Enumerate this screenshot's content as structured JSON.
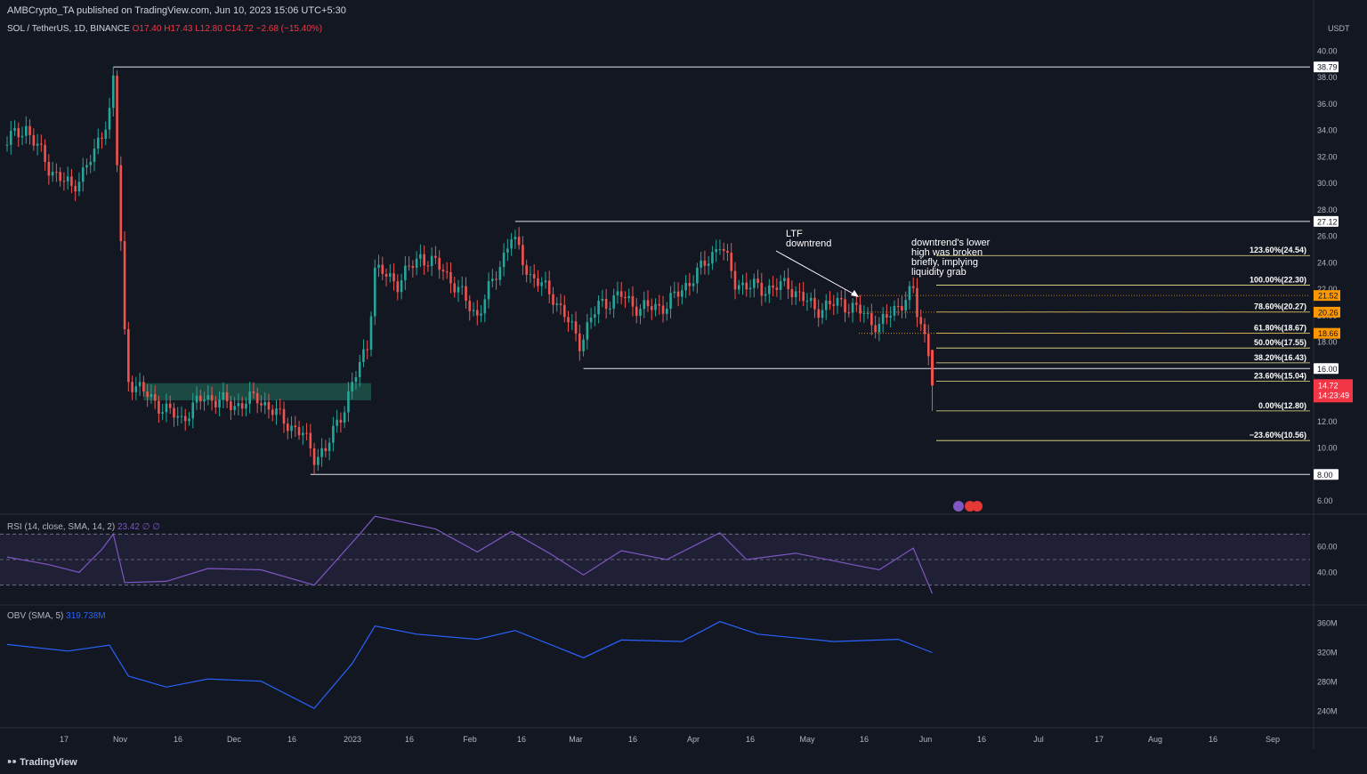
{
  "header": {
    "publisher": "AMBCrypto_TA published on TradingView.com, Jun 10, 2023 15:06 UTC+5:30"
  },
  "legend": {
    "symbol": "SOL / TetherUS, 1D, BINANCE",
    "ohlc": "O17.40 H17.43 L12.80 C14.72 −2.68 (−15.40%)"
  },
  "rsi_label": {
    "name": "RSI (14, close, SMA, 14, 2)",
    "value": "23.42  ∅  ∅"
  },
  "obv_label": {
    "name": "OBV (SMA, 5)",
    "value": "319.738M"
  },
  "footer": {
    "brand": "TradingView"
  },
  "annotations": {
    "ltf": "LTF\ndowntrend",
    "liquidity": "downtrend's lower\nhigh was broken\nbriefly, implying\nliquidity grab"
  },
  "colors": {
    "background": "#131722",
    "up": "#26a69a",
    "down": "#ef5350",
    "fib": "#f0e68c",
    "rsi": "#7e57c2",
    "obv": "#2962ff",
    "zone": "#1f5c4f",
    "marker": "#ff9800",
    "price": "#f23645"
  },
  "chart_data": {
    "type": "candlestick",
    "price_axis": {
      "unit": "USDT",
      "ticks": [
        "40.00",
        "38.00",
        "36.00",
        "34.00",
        "32.00",
        "30.00",
        "28.00",
        "26.00",
        "24.00",
        "22.00",
        "20.00",
        "18.00",
        "16.00",
        "14.00",
        "12.00",
        "10.00",
        "8.00",
        "6.00"
      ],
      "range": [
        5,
        41
      ]
    },
    "x_ticks": [
      "17",
      "Nov",
      "16",
      "Dec",
      "16",
      "2023",
      "16",
      "Feb",
      "16",
      "Mar",
      "16",
      "Apr",
      "16",
      "May",
      "16",
      "Jun",
      "16",
      "Jul",
      "17",
      "Aug",
      "16",
      "Sep"
    ],
    "date_range": [
      "2022-10-09",
      "2023-09-12"
    ],
    "close_series": [
      {
        "date": "2022-10-09",
        "value": 33.2
      },
      {
        "date": "2022-10-14",
        "value": 34.2
      },
      {
        "date": "2022-10-20",
        "value": 31.2
      },
      {
        "date": "2022-10-26",
        "value": 29.6
      },
      {
        "date": "2022-11-01",
        "value": 32.2
      },
      {
        "date": "2022-11-05",
        "value": 35.5
      },
      {
        "date": "2022-11-06",
        "value": 37.8
      },
      {
        "date": "2022-11-07",
        "value": 31.5
      },
      {
        "date": "2022-11-08",
        "value": 25.5
      },
      {
        "date": "2022-11-09",
        "value": 18.5
      },
      {
        "date": "2022-11-10",
        "value": 15.2
      },
      {
        "date": "2022-11-14",
        "value": 14.2
      },
      {
        "date": "2022-11-20",
        "value": 12.8
      },
      {
        "date": "2022-11-24",
        "value": 12.2
      },
      {
        "date": "2022-11-30",
        "value": 13.9
      },
      {
        "date": "2022-12-08",
        "value": 13.2
      },
      {
        "date": "2022-12-14",
        "value": 13.8
      },
      {
        "date": "2022-12-20",
        "value": 12.3
      },
      {
        "date": "2022-12-26",
        "value": 11.0
      },
      {
        "date": "2022-12-29",
        "value": 9.4
      },
      {
        "date": "2023-01-01",
        "value": 9.8
      },
      {
        "date": "2023-01-06",
        "value": 13.2
      },
      {
        "date": "2023-01-09",
        "value": 15.5
      },
      {
        "date": "2023-01-12",
        "value": 17.8
      },
      {
        "date": "2023-01-14",
        "value": 23.5
      },
      {
        "date": "2023-01-20",
        "value": 22.5
      },
      {
        "date": "2023-01-26",
        "value": 24.5
      },
      {
        "date": "2023-02-01",
        "value": 23.5
      },
      {
        "date": "2023-02-06",
        "value": 21.5
      },
      {
        "date": "2023-02-10",
        "value": 20.0
      },
      {
        "date": "2023-02-14",
        "value": 22.5
      },
      {
        "date": "2023-02-19",
        "value": 26.0
      },
      {
        "date": "2023-02-24",
        "value": 23.0
      },
      {
        "date": "2023-03-02",
        "value": 21.5
      },
      {
        "date": "2023-03-09",
        "value": 18.0
      },
      {
        "date": "2023-03-14",
        "value": 20.8
      },
      {
        "date": "2023-03-20",
        "value": 21.5
      },
      {
        "date": "2023-03-25",
        "value": 20.5
      },
      {
        "date": "2023-04-01",
        "value": 20.8
      },
      {
        "date": "2023-04-10",
        "value": 23.5
      },
      {
        "date": "2023-04-15",
        "value": 25.5
      },
      {
        "date": "2023-04-19",
        "value": 22.5
      },
      {
        "date": "2023-04-26",
        "value": 22.0
      },
      {
        "date": "2023-05-03",
        "value": 22.3
      },
      {
        "date": "2023-05-10",
        "value": 20.5
      },
      {
        "date": "2023-05-17",
        "value": 21.0
      },
      {
        "date": "2023-05-22",
        "value": 20.3
      },
      {
        "date": "2023-05-27",
        "value": 19.2
      },
      {
        "date": "2023-06-01",
        "value": 20.8
      },
      {
        "date": "2023-06-05",
        "value": 21.8
      },
      {
        "date": "2023-06-06",
        "value": 20.2
      },
      {
        "date": "2023-06-08",
        "value": 18.5
      },
      {
        "date": "2023-06-09",
        "value": 17.4
      },
      {
        "date": "2023-06-10",
        "value": 14.72
      }
    ],
    "horizontal_levels": [
      {
        "price": 38.79,
        "label": "38.79",
        "from": "2022-11-06"
      },
      {
        "price": 27.12,
        "label": "27.12",
        "from": "2023-02-20"
      },
      {
        "price": 16.0,
        "label": "16.00",
        "from": "2023-03-10"
      },
      {
        "price": 8.0,
        "label": "8.00",
        "from": "2022-12-28"
      }
    ],
    "fib_levels": [
      {
        "label": "123.60%(24.54)",
        "price": 24.54
      },
      {
        "label": "100.00%(22.30)",
        "price": 22.3
      },
      {
        "label": "78.60%(20.27)",
        "price": 20.27
      },
      {
        "label": "61.80%(18.67)",
        "price": 18.67
      },
      {
        "label": "50.00%(17.55)",
        "price": 17.55
      },
      {
        "label": "38.20%(16.43)",
        "price": 16.43
      },
      {
        "label": "23.60%(15.04)",
        "price": 15.04
      },
      {
        "label": "0.00%(12.80)",
        "price": 12.8
      },
      {
        "label": "−23.60%(10.56)",
        "price": 10.56
      }
    ],
    "price_markers": [
      {
        "label": "21.52",
        "price": 21.52
      },
      {
        "label": "20.26",
        "price": 20.26
      },
      {
        "label": "18.66",
        "price": 18.66
      }
    ],
    "last_price": {
      "label": "14.72",
      "countdown": "14:23:49",
      "price": 14.72
    },
    "demand_zone": {
      "from": "2022-11-14",
      "to": "2023-01-13",
      "low": 13.6,
      "high": 14.9
    },
    "rsi": {
      "ticks": [
        "60.00",
        "40.00"
      ],
      "bands": [
        70,
        50,
        30
      ],
      "series": [
        {
          "date": "2022-10-09",
          "value": 52
        },
        {
          "date": "2022-10-20",
          "value": 46
        },
        {
          "date": "2022-10-28",
          "value": 40
        },
        {
          "date": "2022-11-03",
          "value": 58
        },
        {
          "date": "2022-11-06",
          "value": 70
        },
        {
          "date": "2022-11-09",
          "value": 32
        },
        {
          "date": "2022-11-20",
          "value": 33
        },
        {
          "date": "2022-12-01",
          "value": 43
        },
        {
          "date": "2022-12-15",
          "value": 42
        },
        {
          "date": "2022-12-29",
          "value": 30
        },
        {
          "date": "2023-01-10",
          "value": 70
        },
        {
          "date": "2023-01-14",
          "value": 84
        },
        {
          "date": "2023-01-30",
          "value": 74
        },
        {
          "date": "2023-02-10",
          "value": 56
        },
        {
          "date": "2023-02-19",
          "value": 72
        },
        {
          "date": "2023-03-01",
          "value": 55
        },
        {
          "date": "2023-03-10",
          "value": 38
        },
        {
          "date": "2023-03-20",
          "value": 57
        },
        {
          "date": "2023-04-01",
          "value": 50
        },
        {
          "date": "2023-04-15",
          "value": 71
        },
        {
          "date": "2023-04-22",
          "value": 50
        },
        {
          "date": "2023-05-05",
          "value": 55
        },
        {
          "date": "2023-05-20",
          "value": 46
        },
        {
          "date": "2023-05-27",
          "value": 42
        },
        {
          "date": "2023-06-05",
          "value": 59
        },
        {
          "date": "2023-06-10",
          "value": 23.42
        }
      ],
      "range": [
        20,
        80
      ]
    },
    "obv": {
      "ticks": [
        "360M",
        "320M",
        "280M",
        "240M"
      ],
      "series": [
        {
          "date": "2022-10-09",
          "value": 331
        },
        {
          "date": "2022-10-25",
          "value": 322
        },
        {
          "date": "2022-11-05",
          "value": 330
        },
        {
          "date": "2022-11-10",
          "value": 288
        },
        {
          "date": "2022-11-20",
          "value": 273
        },
        {
          "date": "2022-12-01",
          "value": 284
        },
        {
          "date": "2022-12-15",
          "value": 281
        },
        {
          "date": "2022-12-29",
          "value": 244
        },
        {
          "date": "2023-01-08",
          "value": 305
        },
        {
          "date": "2023-01-14",
          "value": 356
        },
        {
          "date": "2023-01-25",
          "value": 345
        },
        {
          "date": "2023-02-10",
          "value": 338
        },
        {
          "date": "2023-02-20",
          "value": 350
        },
        {
          "date": "2023-03-10",
          "value": 313
        },
        {
          "date": "2023-03-20",
          "value": 337
        },
        {
          "date": "2023-04-05",
          "value": 335
        },
        {
          "date": "2023-04-15",
          "value": 362
        },
        {
          "date": "2023-04-25",
          "value": 345
        },
        {
          "date": "2023-05-15",
          "value": 335
        },
        {
          "date": "2023-06-01",
          "value": 338
        },
        {
          "date": "2023-06-10",
          "value": 320
        }
      ],
      "range": [
        225,
        375
      ]
    }
  }
}
